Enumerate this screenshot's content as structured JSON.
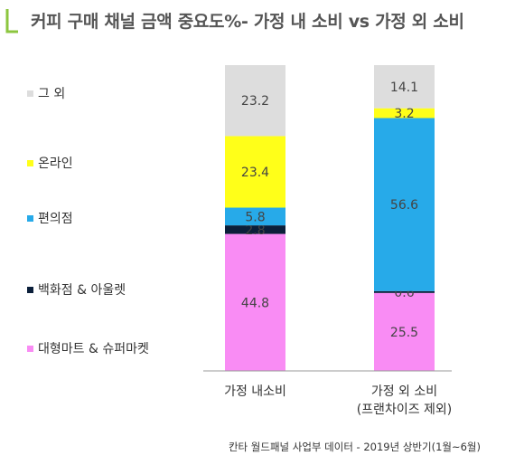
{
  "chart_data": {
    "type": "bar",
    "stacked": true,
    "title": "커피 구매 채널 금액 중요도%- 가정 내 소비 vs 가정 외 소비",
    "categories": [
      "가정 내소비",
      "가정 외 소비\n(프랜차이즈 제외)"
    ],
    "series": [
      {
        "name": "대형마트 & 슈퍼마켓",
        "color": "#F98CF4",
        "values": [
          44.8,
          25.5
        ]
      },
      {
        "name": "백화점 & 아울렛",
        "color": "#0B1F3A",
        "values": [
          2.8,
          0.6
        ]
      },
      {
        "name": "편의점",
        "color": "#27AAE9",
        "values": [
          5.8,
          56.6
        ]
      },
      {
        "name": "온라인",
        "color": "#FFFF19",
        "values": [
          23.4,
          3.2
        ]
      },
      {
        "name": "그 외",
        "color": "#DDDDDD",
        "values": [
          23.2,
          14.1
        ]
      }
    ],
    "ylim": [
      0,
      100
    ],
    "grid": false,
    "legend_position": "left"
  },
  "footer": "칸타 월드패널 사업부 데이터 - 2019년 상반기(1월~6월)",
  "colors": {
    "title_text": "#555555",
    "accent_corner": "#8CC63F",
    "axis": "#888888"
  }
}
